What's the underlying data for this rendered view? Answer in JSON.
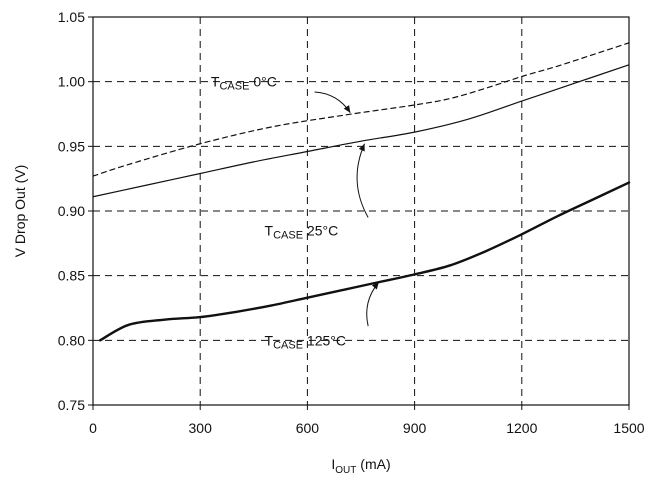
{
  "chart_data": {
    "type": "line",
    "title": "",
    "xlabel": {
      "main": "I",
      "sub": "OUT",
      "unit": " (mA)"
    },
    "ylabel": "V Drop Out (V)",
    "xlim": [
      0,
      1500
    ],
    "ylim": [
      0.75,
      1.05
    ],
    "x_ticks": [
      0,
      300,
      600,
      900,
      1200,
      1500
    ],
    "x_tick_labels": [
      "0",
      "300",
      "600",
      "900",
      "1200",
      "1500"
    ],
    "y_ticks": [
      0.75,
      0.8,
      0.85,
      0.9,
      0.95,
      1.0,
      1.05
    ],
    "y_tick_labels": [
      "0.75",
      "0.80",
      "0.85",
      "0.90",
      "0.95",
      "1.00",
      "1.05"
    ],
    "grid": true,
    "grid_style": "dashed",
    "legend": "none",
    "series": [
      {
        "name": "TCASE 0°C",
        "label": {
          "main": "T",
          "sub": "CASE",
          "suffix": " 0°C"
        },
        "line_style": "dashed",
        "color": "#111111",
        "x": [
          0,
          100,
          300,
          500,
          700,
          900,
          1000,
          1100,
          1200,
          1300,
          1400,
          1500
        ],
        "y": [
          0.927,
          0.936,
          0.952,
          0.965,
          0.974,
          0.982,
          0.987,
          0.995,
          1.004,
          1.012,
          1.021,
          1.03
        ]
      },
      {
        "name": "TCASE 25°C",
        "label": {
          "main": "T",
          "sub": "CASE",
          "suffix": " 25°C"
        },
        "line_style": "solid",
        "color": "#111111",
        "x": [
          0,
          150,
          300,
          450,
          600,
          750,
          900,
          1050,
          1200,
          1350,
          1500
        ],
        "y": [
          0.911,
          0.92,
          0.929,
          0.938,
          0.946,
          0.954,
          0.961,
          0.971,
          0.985,
          0.999,
          1.013
        ]
      },
      {
        "name": "TCASE 125°C",
        "label": {
          "main": "T",
          "sub": "CASE",
          "suffix": " 125°C"
        },
        "line_style": "solid-thick",
        "color": "#111111",
        "x": [
          20,
          100,
          200,
          300,
          400,
          500,
          600,
          700,
          800,
          900,
          1000,
          1100,
          1200,
          1300,
          1400,
          1500
        ],
        "y": [
          0.8,
          0.812,
          0.816,
          0.818,
          0.822,
          0.827,
          0.833,
          0.839,
          0.845,
          0.851,
          0.858,
          0.869,
          0.882,
          0.896,
          0.909,
          0.922
        ]
      }
    ],
    "annotations": [
      {
        "series": 0,
        "text_at": [
          330,
          1.0
        ],
        "arrow_from": [
          620,
          0.992
        ],
        "arrow_to": [
          720,
          0.976
        ]
      },
      {
        "series": 1,
        "text_at": [
          480,
          0.885
        ],
        "arrow_from": [
          770,
          0.895
        ],
        "arrow_to": [
          760,
          0.952
        ]
      },
      {
        "series": 2,
        "text_at": [
          480,
          0.8
        ],
        "arrow_from": [
          770,
          0.811
        ],
        "arrow_to": [
          800,
          0.845
        ]
      }
    ]
  }
}
